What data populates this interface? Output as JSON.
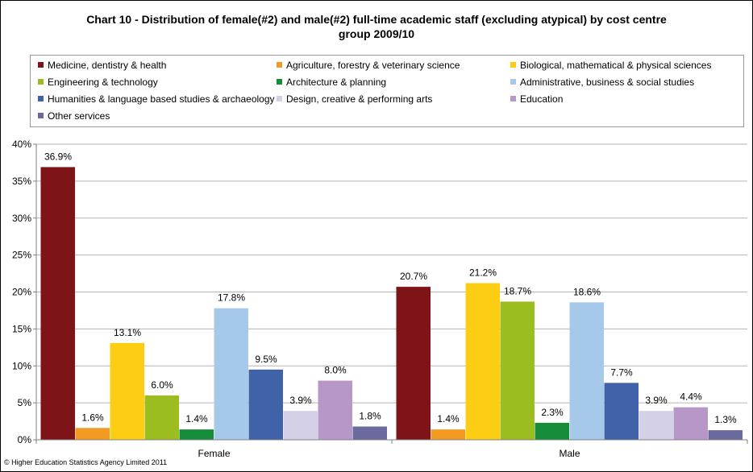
{
  "chart_data": {
    "type": "bar",
    "title": "Chart 10 - Distribution of female(#2) and male(#2) full-time academic staff (excluding atypical) by cost centre group 2009/10",
    "title_lines": [
      "Chart 10 - Distribution of female(#2) and male(#2) full-time academic staff (excluding atypical) by cost centre",
      "group 2009/10"
    ],
    "xlabel": "",
    "ylabel": "",
    "categories": [
      "Female",
      "Male"
    ],
    "ylim": [
      0,
      40
    ],
    "yticks": [
      0,
      5,
      10,
      15,
      20,
      25,
      30,
      35,
      40
    ],
    "ytick_labels": [
      "0%",
      "5%",
      "10%",
      "15%",
      "20%",
      "25%",
      "30%",
      "35%",
      "40%"
    ],
    "grid": true,
    "legend_position": "top",
    "series": [
      {
        "name": "Medicine, dentistry & health",
        "color": "#7f1418",
        "values": [
          36.9,
          20.7
        ],
        "labels": [
          "36.9%",
          "20.7%"
        ]
      },
      {
        "name": "Agriculture, forestry & veterinary science",
        "color": "#f39a22",
        "values": [
          1.6,
          1.4
        ],
        "labels": [
          "1.6%",
          "1.4%"
        ]
      },
      {
        "name": "Biological, mathematical & physical sciences",
        "color": "#fdcd13",
        "values": [
          13.1,
          21.2
        ],
        "labels": [
          "13.1%",
          "21.2%"
        ]
      },
      {
        "name": "Engineering & technology",
        "color": "#9bbd1f",
        "values": [
          6.0,
          18.7
        ],
        "labels": [
          "6.0%",
          "18.7%"
        ]
      },
      {
        "name": "Architecture & planning",
        "color": "#158c3a",
        "values": [
          1.4,
          2.3
        ],
        "labels": [
          "1.4%",
          "2.3%"
        ]
      },
      {
        "name": "Administrative, business & social studies",
        "color": "#a6c9ea",
        "values": [
          17.8,
          18.6
        ],
        "labels": [
          "17.8%",
          "18.6%"
        ]
      },
      {
        "name": "Humanities & language based studies & archaeology",
        "color": "#4062a9",
        "values": [
          9.5,
          7.7
        ],
        "labels": [
          "9.5%",
          "7.7%"
        ]
      },
      {
        "name": "Design, creative & performing arts",
        "color": "#d3d0e8",
        "values": [
          3.9,
          3.9
        ],
        "labels": [
          "3.9%",
          "3.9%"
        ]
      },
      {
        "name": "Education",
        "color": "#b697c8",
        "values": [
          8.0,
          4.4
        ],
        "labels": [
          "8.0%",
          "4.4%"
        ]
      },
      {
        "name": "Other services",
        "color": "#6b6a9e",
        "values": [
          1.8,
          1.3
        ],
        "labels": [
          "1.8%",
          "1.3%"
        ]
      }
    ]
  },
  "footer": {
    "copyright": "© Higher Education Statistics Agency Limited 2011"
  },
  "colors": {
    "gridline": "#b3b3b3",
    "axis": "#808080"
  }
}
